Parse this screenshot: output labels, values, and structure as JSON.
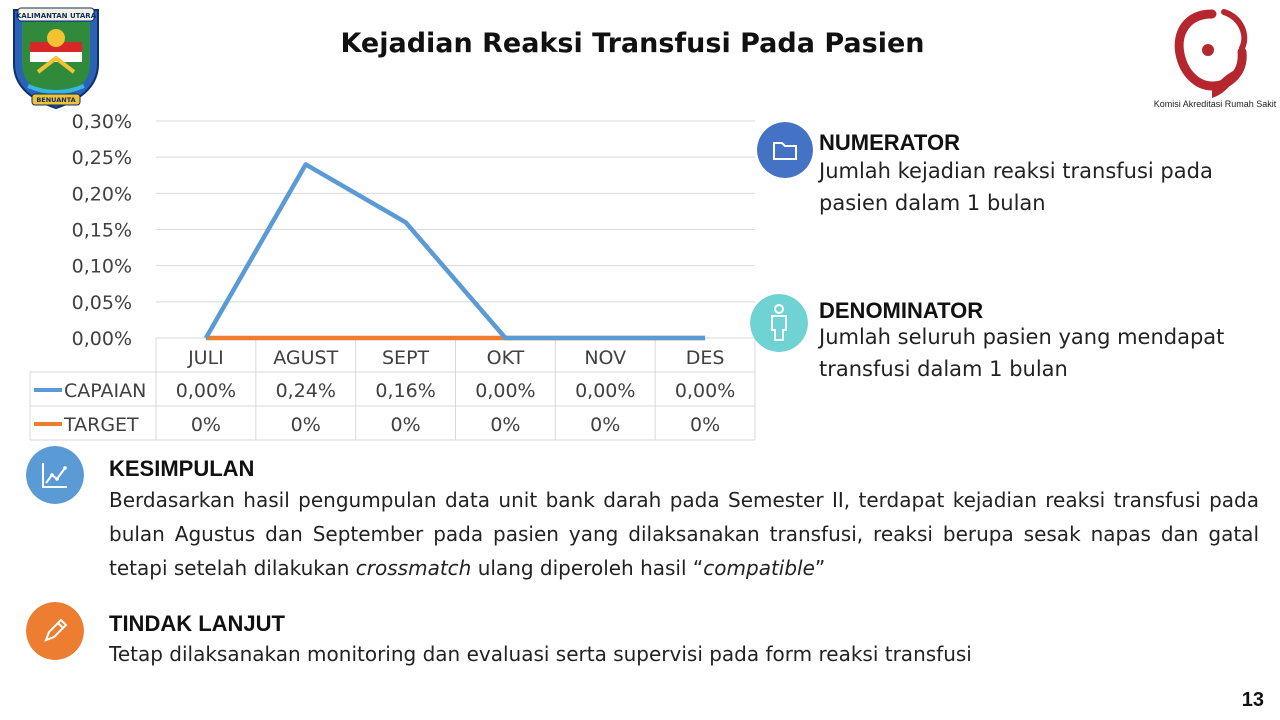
{
  "title": "Kejadian Reaksi Transfusi Pada Pasien",
  "logo_left": {
    "banner_top": "KALIMANTAN UTARA",
    "banner_bottom": "BENUANTA"
  },
  "logo_right": {
    "caption": "Komisi Akreditasi Rumah Sakit",
    "color": "#b5262e"
  },
  "chart_data": {
    "type": "line",
    "categories": [
      "JULI",
      "AGUST",
      "SEPT",
      "OKT",
      "NOV",
      "DES"
    ],
    "series": [
      {
        "name": "CAPAIAN",
        "values": [
          0.0,
          0.24,
          0.16,
          0.0,
          0.0,
          0.0
        ],
        "labels": [
          "0,00%",
          "0,24%",
          "0,16%",
          "0,00%",
          "0,00%",
          "0,00%"
        ],
        "color": "#5b9bd5"
      },
      {
        "name": "TARGET",
        "values": [
          0,
          0,
          0,
          0,
          0,
          0
        ],
        "labels": [
          "0%",
          "0%",
          "0%",
          "0%",
          "0%",
          "0%"
        ],
        "color": "#ed7d31"
      }
    ],
    "yticks": [
      "0,00%",
      "0,05%",
      "0,10%",
      "0,15%",
      "0,20%",
      "0,25%",
      "0,30%"
    ],
    "ylim": [
      0,
      0.3
    ],
    "grid": true,
    "legend": "data-table"
  },
  "numerator": {
    "heading": "NUMERATOR",
    "body": "Jumlah kejadian reaksi transfusi pada pasien dalam 1 bulan",
    "icon": "folder-icon",
    "color": "#4472c4"
  },
  "denominator": {
    "heading": "DENOMINATOR",
    "body": "Jumlah seluruh pasien yang mendapat transfusi dalam 1 bulan",
    "icon": "person-icon",
    "color": "#6fd3d3"
  },
  "kesimpulan": {
    "heading": "KESIMPULAN",
    "body_1": "Berdasarkan hasil pengumpulan data unit bank darah pada Semester II, terdapat kejadian reaksi transfusi pada bulan Agustus dan September pada pasien yang dilaksanakan transfusi, reaksi berupa sesak napas dan gatal tetapi setelah dilakukan ",
    "body_em_1": "crossmatch",
    "body_2": " ulang diperoleh hasil “",
    "body_em_2": "compatible",
    "body_3": "”",
    "icon": "chart-icon",
    "color": "#5b9bd5"
  },
  "tindak_lanjut": {
    "heading": "TINDAK LANJUT",
    "body": "Tetap dilaksanakan monitoring dan evaluasi serta supervisi pada form reaksi transfusi",
    "icon": "pencil-icon",
    "color": "#ed7d31"
  },
  "page_number": "13"
}
